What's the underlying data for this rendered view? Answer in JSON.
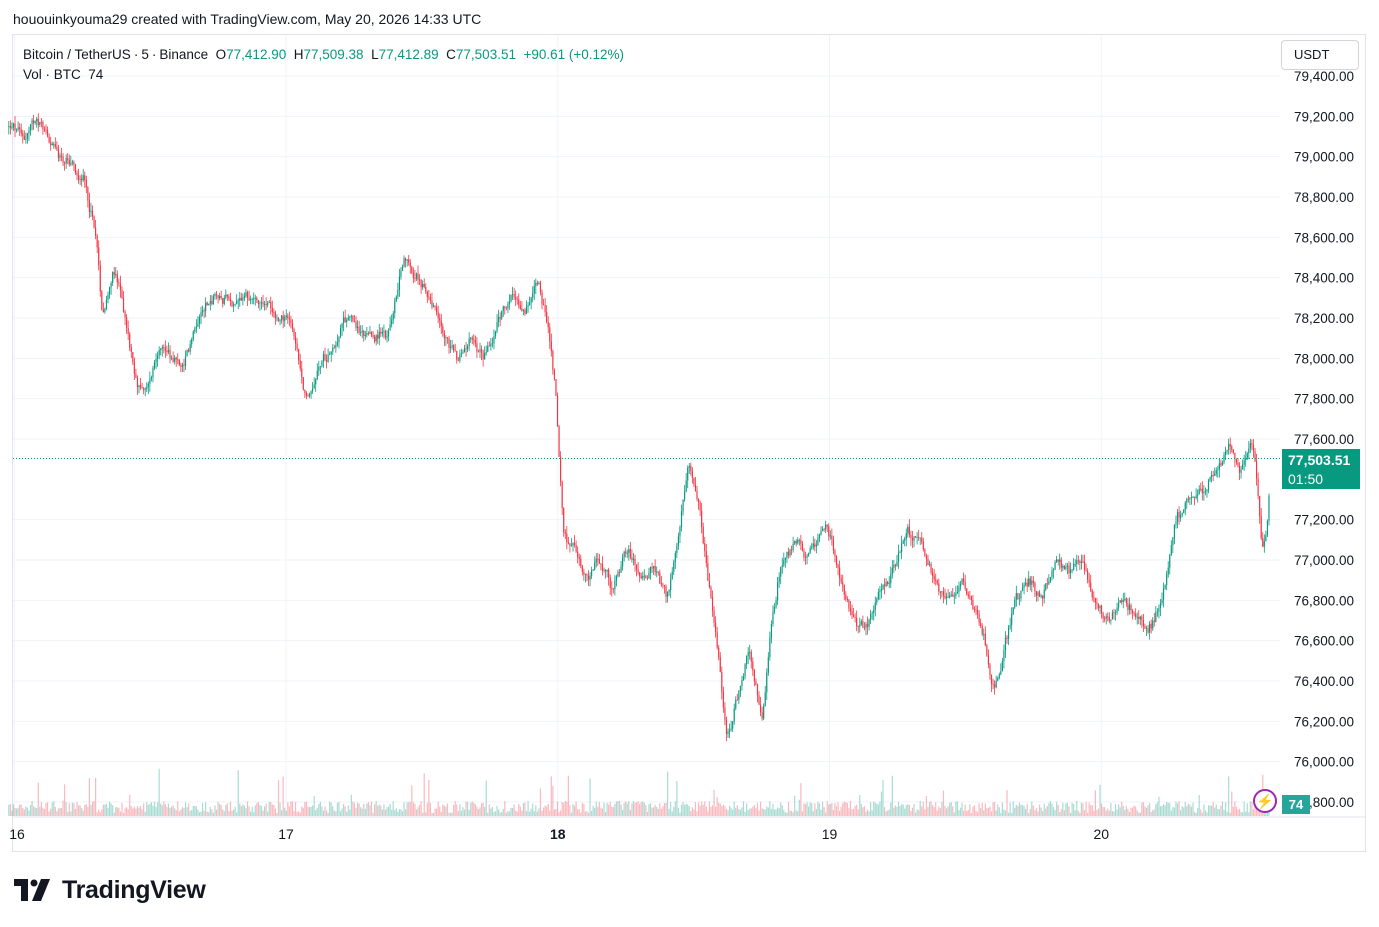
{
  "header": {
    "created_by": "hououinkyouma29 created with TradingView.com, May 20, 2026 14:33 UTC"
  },
  "legend": {
    "symbol": "Bitcoin / TetherUS",
    "interval": "5",
    "exchange": "Binance",
    "open_label": "O",
    "open": "77,412.90",
    "high_label": "H",
    "high": "77,509.38",
    "low_label": "L",
    "low": "77,412.89",
    "close_label": "C",
    "close": "77,503.51",
    "change": "+90.61 (+0.12%)",
    "volume_label": "Vol · BTC",
    "volume": "74"
  },
  "currency": "USDT",
  "price_tag": {
    "price": "77,503.51",
    "countdown": "01:50"
  },
  "volume_tag": "74",
  "alert_icon": "lightning-icon",
  "logo_text": "TradingView",
  "colors": {
    "up": "#089981",
    "down": "#f23645",
    "grid": "#f0f3fa",
    "text": "#131722",
    "alert": "#9c27b0"
  },
  "chart_data": {
    "type": "candlestick",
    "x_ticks": [
      "16",
      "17",
      "18",
      "19",
      "20"
    ],
    "y_ticks": [
      "79,400.00",
      "79,200.00",
      "79,000.00",
      "78,800.00",
      "78,600.00",
      "78,400.00",
      "78,200.00",
      "78,000.00",
      "77,800.00",
      "77,600.00",
      "77,200.00",
      "77,000.00",
      "76,800.00",
      "76,600.00",
      "76,400.00",
      "76,200.00",
      "76,000.00",
      "75,800.00"
    ],
    "y_range": [
      75720,
      79420
    ],
    "last_price": 77503.51,
    "series": [
      {
        "name": "Bitcoin / TetherUS",
        "keypoints": [
          [
            15.98,
            79150
          ],
          [
            16.04,
            79100
          ],
          [
            16.08,
            79200
          ],
          [
            16.14,
            79050
          ],
          [
            16.2,
            78950
          ],
          [
            16.25,
            78900
          ],
          [
            16.3,
            78600
          ],
          [
            16.32,
            78200
          ],
          [
            16.36,
            78450
          ],
          [
            16.4,
            78250
          ],
          [
            16.44,
            77900
          ],
          [
            16.48,
            77820
          ],
          [
            16.53,
            78080
          ],
          [
            16.58,
            78000
          ],
          [
            16.62,
            77950
          ],
          [
            16.66,
            78150
          ],
          [
            16.7,
            78280
          ],
          [
            16.74,
            78300
          ],
          [
            16.8,
            78270
          ],
          [
            16.86,
            78300
          ],
          [
            16.92,
            78280
          ],
          [
            16.98,
            78200
          ],
          [
            17.02,
            78180
          ],
          [
            17.05,
            77900
          ],
          [
            17.08,
            77800
          ],
          [
            17.13,
            78000
          ],
          [
            17.18,
            78080
          ],
          [
            17.23,
            78220
          ],
          [
            17.28,
            78100
          ],
          [
            17.33,
            78100
          ],
          [
            17.38,
            78150
          ],
          [
            17.43,
            78520
          ],
          [
            17.48,
            78400
          ],
          [
            17.53,
            78300
          ],
          [
            17.58,
            78100
          ],
          [
            17.63,
            78000
          ],
          [
            17.68,
            78100
          ],
          [
            17.73,
            78000
          ],
          [
            17.78,
            78200
          ],
          [
            17.83,
            78300
          ],
          [
            17.88,
            78250
          ],
          [
            17.93,
            78380
          ],
          [
            17.97,
            78050
          ],
          [
            17.99,
            77850
          ],
          [
            18.0,
            77500
          ],
          [
            18.02,
            77100
          ],
          [
            18.06,
            77050
          ],
          [
            18.1,
            76900
          ],
          [
            18.15,
            77000
          ],
          [
            18.2,
            76850
          ],
          [
            18.25,
            77050
          ],
          [
            18.3,
            76900
          ],
          [
            18.35,
            76950
          ],
          [
            18.4,
            76800
          ],
          [
            18.45,
            77200
          ],
          [
            18.48,
            77500
          ],
          [
            18.52,
            77250
          ],
          [
            18.55,
            76900
          ],
          [
            18.58,
            76600
          ],
          [
            18.62,
            76100
          ],
          [
            18.65,
            76300
          ],
          [
            18.7,
            76550
          ],
          [
            18.75,
            76200
          ],
          [
            18.78,
            76650
          ],
          [
            18.82,
            77000
          ],
          [
            18.87,
            77100
          ],
          [
            18.92,
            77000
          ],
          [
            18.98,
            77200
          ],
          [
            19.03,
            76950
          ],
          [
            19.08,
            76700
          ],
          [
            19.13,
            76650
          ],
          [
            19.18,
            76850
          ],
          [
            19.23,
            76950
          ],
          [
            19.28,
            77150
          ],
          [
            19.33,
            77100
          ],
          [
            19.38,
            76900
          ],
          [
            19.43,
            76800
          ],
          [
            19.48,
            76900
          ],
          [
            19.53,
            76750
          ],
          [
            19.57,
            76600
          ],
          [
            19.6,
            76350
          ],
          [
            19.63,
            76500
          ],
          [
            19.68,
            76800
          ],
          [
            19.73,
            76900
          ],
          [
            19.78,
            76800
          ],
          [
            19.83,
            77000
          ],
          [
            19.88,
            76950
          ],
          [
            19.93,
            77000
          ],
          [
            19.97,
            76800
          ],
          [
            20.02,
            76700
          ],
          [
            20.07,
            76800
          ],
          [
            20.12,
            76750
          ],
          [
            20.17,
            76650
          ],
          [
            20.22,
            76800
          ],
          [
            20.27,
            77200
          ],
          [
            20.32,
            77300
          ],
          [
            20.37,
            77350
          ],
          [
            20.42,
            77450
          ],
          [
            20.47,
            77550
          ],
          [
            20.51,
            77450
          ],
          [
            20.55,
            77600
          ],
          [
            20.57,
            77400
          ],
          [
            20.59,
            77000
          ],
          [
            20.61,
            77200
          ],
          [
            20.62,
            77503.51
          ]
        ]
      }
    ]
  }
}
